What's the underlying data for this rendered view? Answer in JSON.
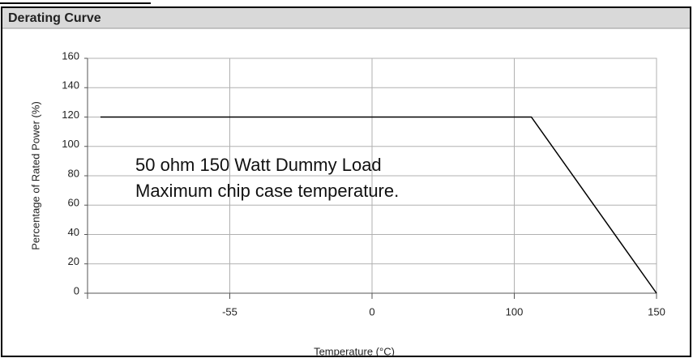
{
  "chart_data": {
    "type": "line",
    "title": "Derating Curve",
    "x_label": "Temperature (°C)",
    "y_label": "Percentage of Rated Power (%)",
    "annotations": [
      "50 ohm 150 Watt Dummy Load",
      "Maximum chip case temperature."
    ],
    "x": [
      -105,
      106,
      150
    ],
    "series": [
      {
        "name": "Derating",
        "color": "#000000",
        "values": [
          120,
          120,
          0
        ]
      }
    ],
    "xlim": [
      -110,
      150
    ],
    "xticks": [
      -55,
      0,
      100,
      150
    ],
    "ylim": [
      0,
      160
    ],
    "yticks": [
      0,
      20,
      40,
      60,
      80,
      100,
      120,
      140,
      160
    ],
    "grid": true
  }
}
